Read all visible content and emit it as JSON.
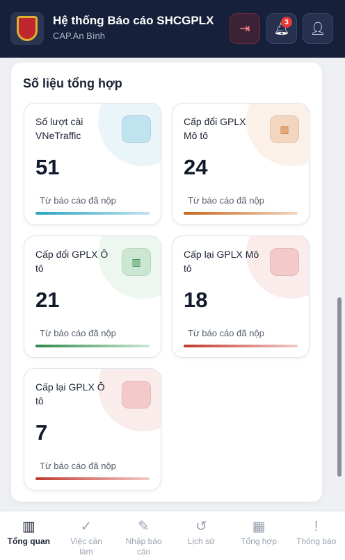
{
  "header": {
    "title": "Hệ thống Báo cáo SHCGPLX",
    "subtitle": "CAP.An Bình",
    "notification_count": 3
  },
  "section": {
    "title": "Số liệu tổng hợp"
  },
  "stats": [
    {
      "label": "Số lượt cài VNeTraffic",
      "value": 51,
      "note": "Từ báo cáo đã nộp"
    },
    {
      "label": "Cấp đổi GPLX Mô tô",
      "value": 24,
      "note": "Từ báo cáo đã nộp"
    },
    {
      "label": "Cấp đổi GPLX Ô tô",
      "value": 21,
      "note": "Từ báo cáo đã nộp"
    },
    {
      "label": "Cấp lại GPLX Mô tô",
      "value": 18,
      "note": "Từ báo cáo đã nộp"
    },
    {
      "label": "Cấp lại GPLX Ô tô",
      "value": 7,
      "note": "Từ báo cáo đã nộp"
    }
  ],
  "nav": [
    "Tổng quan",
    "Việc cần làm",
    "Nhập báo cáo",
    "Lịch sử",
    "Tổng hợp",
    "Thông báo"
  ]
}
